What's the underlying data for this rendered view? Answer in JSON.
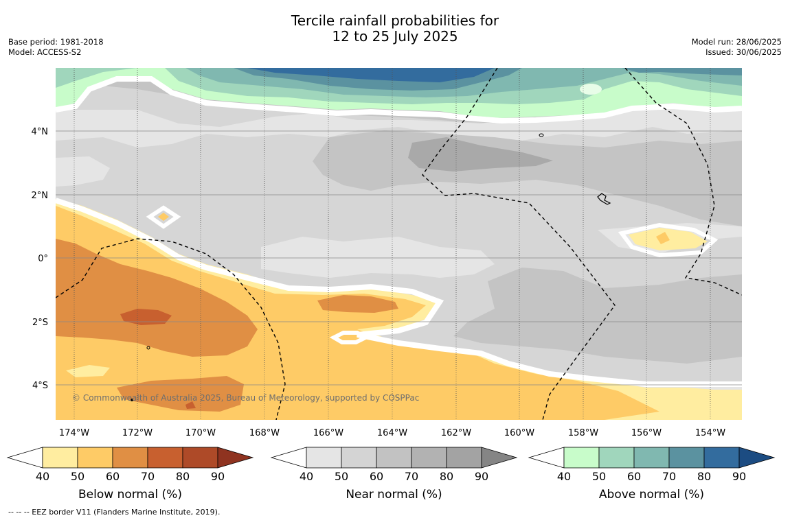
{
  "title_line1": "Tercile rainfall probabilities for",
  "title_line2": "12 to 25 July 2025",
  "base_period": "Base period: 1981-2018",
  "model": "Model: ACCESS-S2",
  "model_run": "Model run: 28/06/2025",
  "issued": "Issued: 30/06/2025",
  "copyright": "© Commonwealth of Australia 2025, Bureau of Meteorology, supported by COSPPac",
  "footer": "--  --  -- EEZ border V11 (Flanders Marine Institute, 2019).",
  "lon_labels": [
    "174°W",
    "172°W",
    "170°W",
    "168°W",
    "166°W",
    "164°W",
    "162°W",
    "160°W",
    "158°W",
    "156°W",
    "154°W"
  ],
  "lat_labels": [
    "4°N",
    "2°N",
    "0°",
    "2°S",
    "4°S"
  ],
  "colorbars": [
    {
      "title": "Below normal (%)",
      "ticks": [
        "40",
        "50",
        "60",
        "70",
        "80",
        "90"
      ],
      "colors": [
        "#ffeda0",
        "#fecb66",
        "#e08f44",
        "#c8602f",
        "#ae4a28"
      ],
      "over": "#8f3320"
    },
    {
      "title": "Near normal (%)",
      "ticks": [
        "40",
        "50",
        "60",
        "70",
        "80",
        "90"
      ],
      "colors": [
        "#e5e5e5",
        "#d4d4d4",
        "#c2c2c2",
        "#b2b2b2",
        "#a3a3a3"
      ],
      "over": "#858585"
    },
    {
      "title": "Above normal (%)",
      "ticks": [
        "40",
        "50",
        "60",
        "70",
        "80",
        "90"
      ],
      "colors": [
        "#c8fcca",
        "#a0d6bc",
        "#80b8b0",
        "#5b92a0",
        "#336c9e"
      ],
      "over": "#1c4c82"
    }
  ]
}
